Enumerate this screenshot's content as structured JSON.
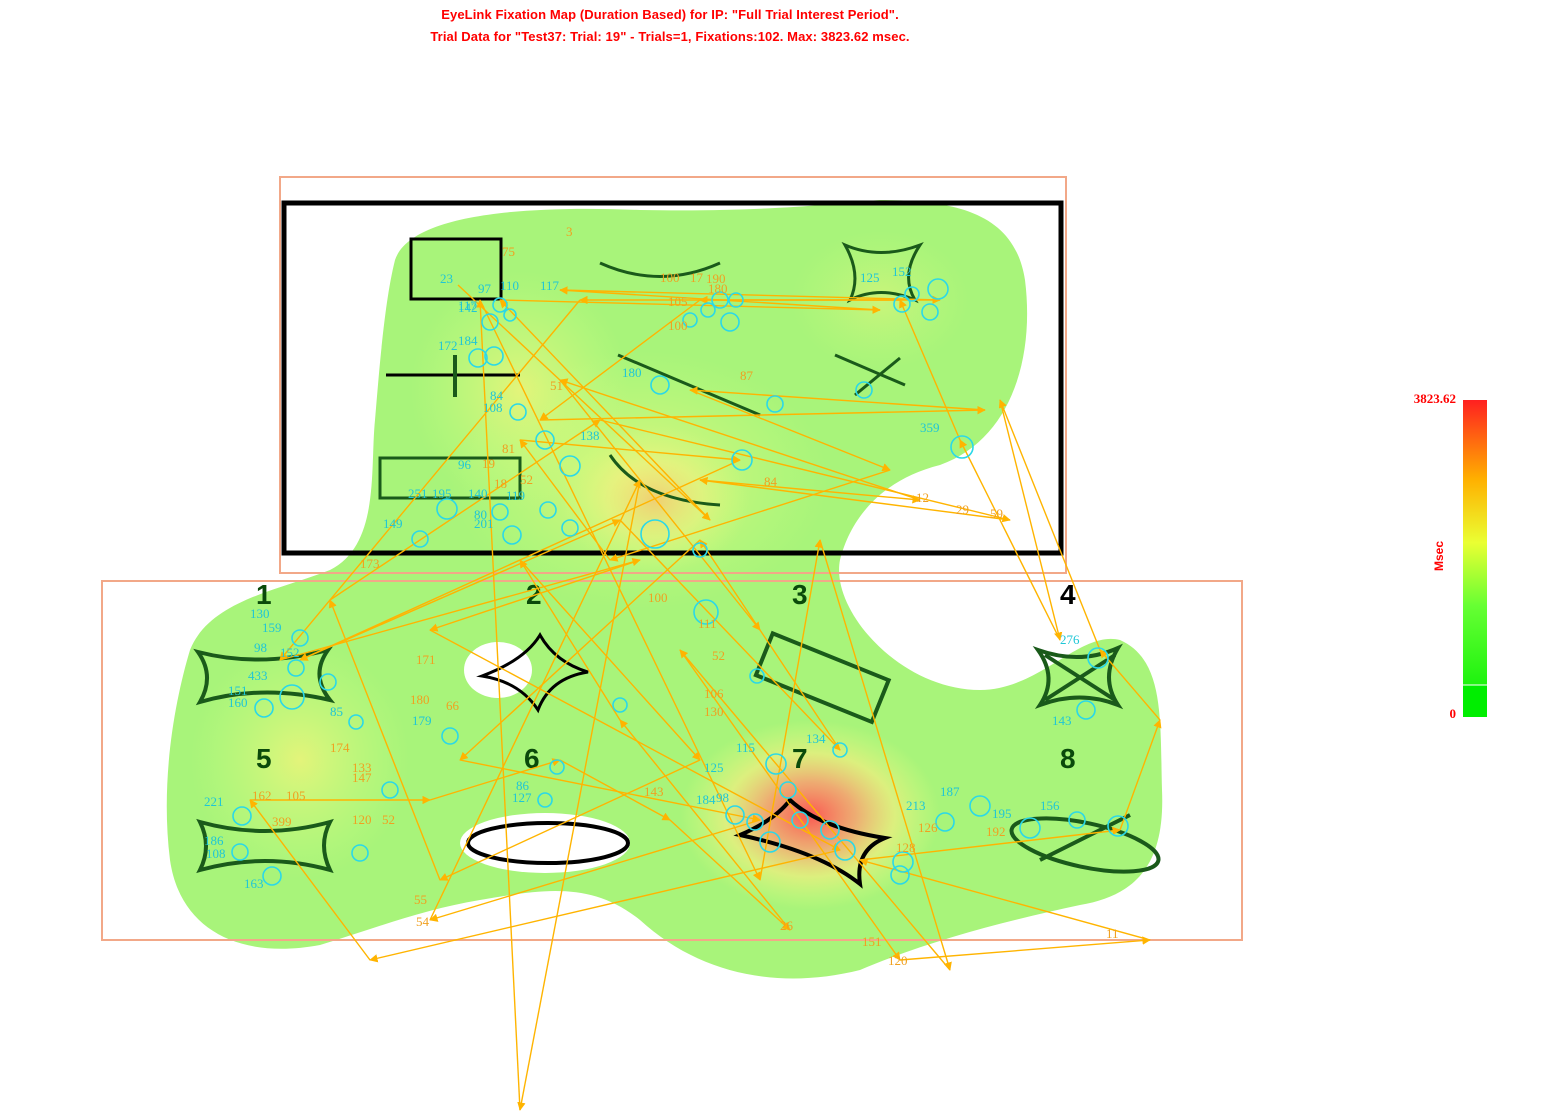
{
  "title_line1": "EyeLink Fixation Map (Duration Based) for IP: \"Full Trial Interest Period\".",
  "title_line2": "Trial Data for  \"Test37: Trial: 19\" - Trials=1, Fixations:102. Max: 3823.62 msec.",
  "colors": {
    "title": "#ff0000",
    "heat_low": "#00ee00",
    "heat_mid": "#ffff00",
    "heat_high": "#ff0000",
    "saccade": "#ffb400",
    "fixation_circle": "#2ad8e8",
    "fixation_label_cyan": "#1fc6d6",
    "fixation_label_orange": "#f0a020",
    "interest_area_border": "#f2a888"
  },
  "chart_data": {
    "type": "heatmap",
    "title": "EyeLink Fixation Map (Duration Based)",
    "color_scale": {
      "min": 0,
      "max": 3823.62,
      "min_label": "0",
      "max_label": "3823.62",
      "unit_label": "Msec"
    },
    "stimulus_number_labels": [
      "1",
      "2",
      "3",
      "4",
      "5",
      "6",
      "7",
      "8"
    ],
    "fixation_labels_cyan": [
      "23",
      "97",
      "110",
      "117",
      "117",
      "142",
      "172",
      "184",
      "108",
      "84",
      "138",
      "96",
      "251",
      "195",
      "140",
      "119",
      "80",
      "201",
      "149",
      "180",
      "125",
      "152",
      "359",
      "130",
      "159",
      "98",
      "152",
      "433",
      "151",
      "160",
      "85",
      "179",
      "115",
      "134",
      "125",
      "184",
      "221",
      "186",
      "108",
      "163",
      "98",
      "187",
      "213",
      "195",
      "156",
      "276",
      "143",
      "86",
      "127"
    ],
    "fixation_labels_orange": [
      "75",
      "3",
      "17",
      "100",
      "190",
      "105",
      "180",
      "100",
      "51",
      "81",
      "19",
      "18",
      "52",
      "173",
      "100",
      "111",
      "52",
      "171",
      "180",
      "66",
      "174",
      "133",
      "147",
      "162",
      "105",
      "399",
      "52",
      "120",
      "106",
      "130",
      "143",
      "55",
      "54",
      "151",
      "120",
      "128",
      "192",
      "126",
      "12",
      "29",
      "59",
      "11",
      "84",
      "26",
      "87"
    ]
  }
}
